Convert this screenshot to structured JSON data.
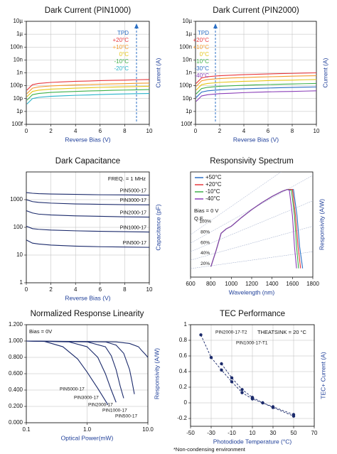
{
  "chart_data": [
    {
      "type": "line",
      "title": "Dark Current (PIN1000)",
      "xlabel": "Reverse Bias (V)",
      "ylabel": "Current (A)",
      "ylog": true,
      "grid": true,
      "xlim": [
        0,
        10
      ],
      "xticks": [
        0,
        2,
        4,
        6,
        8,
        10
      ],
      "ylim": [
        1e-13,
        1e-05
      ],
      "yticks": [
        {
          "value": 1e-05,
          "label": "10µ"
        },
        {
          "value": 1e-06,
          "label": "1µ"
        },
        {
          "value": 1e-07,
          "label": "100n"
        },
        {
          "value": 1e-08,
          "label": "10n"
        },
        {
          "value": 1e-09,
          "label": "1n"
        },
        {
          "value": 1e-10,
          "label": "100p"
        },
        {
          "value": 1e-11,
          "label": "10p"
        },
        {
          "value": 1e-12,
          "label": "1p"
        },
        {
          "value": 1e-13,
          "label": "100f"
        }
      ],
      "legend_title": "TPD",
      "x": [
        0.05,
        0.5,
        1,
        2,
        3,
        4,
        5,
        6,
        7,
        8,
        9,
        10
      ],
      "series": [
        {
          "name": "+20°C",
          "color": "#e8383d",
          "values": [
            4.5e-11,
            1.2e-10,
            1.5e-10,
            1.8e-10,
            2e-10,
            2.2e-10,
            2.3e-10,
            2.5e-10,
            2.6e-10,
            2.7e-10,
            2.9e-10,
            3e-10
          ]
        },
        {
          "name": "+10°C",
          "color": "#f39a2b",
          "values": [
            2.4e-11,
            6.4e-11,
            8e-11,
            9.6e-11,
            1.06e-10,
            1.15e-10,
            1.23e-10,
            1.31e-10,
            1.39e-10,
            1.46e-10,
            1.54e-10,
            1.6e-10
          ]
        },
        {
          "name": "0°C",
          "color": "#e6c619",
          "values": [
            1.4e-11,
            3.6e-11,
            4.5e-11,
            5.4e-11,
            5.9e-11,
            6.5e-11,
            6.9e-11,
            7.4e-11,
            7.8e-11,
            8.2e-11,
            8.6e-11,
            9e-11
          ]
        },
        {
          "name": "-10°C",
          "color": "#3db04a",
          "values": [
            7.5e-12,
            2e-11,
            2.5e-11,
            3e-11,
            3.3e-11,
            3.6e-11,
            3.9e-11,
            4.1e-11,
            4.4e-11,
            4.6e-11,
            4.8e-11,
            5e-11
          ]
        },
        {
          "name": "-20°C",
          "color": "#27b3c9",
          "values": [
            3.8e-12,
            1e-11,
            1.25e-11,
            1.5e-11,
            1.65e-11,
            1.8e-11,
            1.9e-11,
            2.05e-11,
            2.2e-11,
            2.3e-11,
            2.4e-11,
            2.5e-11
          ]
        }
      ]
    },
    {
      "type": "line",
      "title": "Dark Current (PIN2000)",
      "xlabel": "Reverse Bias (V)",
      "ylabel": "Current (A)",
      "ylog": true,
      "grid": true,
      "xlim": [
        0,
        10
      ],
      "xticks": [
        0,
        2,
        4,
        6,
        8,
        10
      ],
      "ylim": [
        1e-13,
        1e-05
      ],
      "yticks": [
        {
          "value": 1e-05,
          "label": "10µ"
        },
        {
          "value": 1e-06,
          "label": "1µ"
        },
        {
          "value": 1e-07,
          "label": "100n"
        },
        {
          "value": 1e-08,
          "label": "10n"
        },
        {
          "value": 1e-09,
          "label": "1n"
        },
        {
          "value": 1e-10,
          "label": "100p"
        },
        {
          "value": 1e-11,
          "label": "10p"
        },
        {
          "value": 1e-12,
          "label": "1p"
        },
        {
          "value": 1e-13,
          "label": "100f"
        }
      ],
      "legend_title": "TPD",
      "x": [
        0.05,
        0.5,
        1,
        2,
        3,
        4,
        5,
        6,
        7,
        8,
        9,
        10
      ],
      "series": [
        {
          "name": "+20°C",
          "color": "#e8383d",
          "values": [
            1.5e-10,
            4e-10,
            5e-10,
            6e-10,
            6.6e-10,
            7.2e-10,
            7.7e-10,
            8.2e-10,
            8.7e-10,
            9.1e-10,
            9.6e-10,
            1e-09
          ]
        },
        {
          "name": "+10°C",
          "color": "#f39a2b",
          "values": [
            9e-11,
            2.4e-10,
            3e-10,
            3.6e-10,
            4e-10,
            4.3e-10,
            4.6e-10,
            4.9e-10,
            5.2e-10,
            5.5e-10,
            5.8e-10,
            6e-10
          ]
        },
        {
          "name": "0°C",
          "color": "#e6c619",
          "values": [
            4.5e-11,
            1.2e-10,
            1.5e-10,
            1.8e-10,
            2e-10,
            2.2e-10,
            2.3e-10,
            2.5e-10,
            2.6e-10,
            2.7e-10,
            2.9e-10,
            3e-10
          ]
        },
        {
          "name": "-10°C",
          "color": "#3db04a",
          "values": [
            2.3e-11,
            6e-11,
            7.5e-11,
            9e-11,
            9.9e-11,
            1.08e-10,
            1.16e-10,
            1.23e-10,
            1.3e-10,
            1.37e-10,
            1.44e-10,
            1.5e-10
          ]
        },
        {
          "name": "-30°C",
          "color": "#2b6fc4",
          "values": [
            1.2e-11,
            3.2e-11,
            4e-11,
            4.8e-11,
            5.3e-11,
            5.8e-11,
            6.2e-11,
            6.6e-11,
            7e-11,
            7.3e-11,
            7.7e-11,
            8e-11
          ]
        },
        {
          "name": "-40°C",
          "color": "#8a3fb8",
          "values": [
            6e-12,
            1.6e-11,
            2e-11,
            2.4e-11,
            2.6e-11,
            2.9e-11,
            3.1e-11,
            3.3e-11,
            3.5e-11,
            3.6e-11,
            3.8e-11,
            4e-11
          ]
        }
      ]
    },
    {
      "type": "line",
      "title": "Dark Capacitance",
      "xlabel": "Reverse Bias (V)",
      "ylabel": "Capacitance (pF)",
      "ylog": true,
      "grid": true,
      "xlim": [
        0,
        10
      ],
      "xticks": [
        0,
        2,
        4,
        6,
        8,
        10
      ],
      "ylim": [
        1,
        10000
      ],
      "yticks": [
        1,
        10,
        100,
        1000
      ],
      "annotations": [
        "FREQ. = 1 MHz"
      ],
      "x": [
        0,
        0.5,
        1,
        2,
        4,
        6,
        8,
        10
      ],
      "series": [
        {
          "name": "PIN5000-17",
          "color": "#1b2a6b",
          "values": [
            1800,
            1700,
            1650,
            1600,
            1550,
            1500,
            1480,
            1450
          ]
        },
        {
          "name": "PIN3000-17",
          "color": "#1b2a6b",
          "values": [
            1000,
            850,
            800,
            750,
            700,
            680,
            660,
            650
          ]
        },
        {
          "name": "PIN2000-17",
          "color": "#1b2a6b",
          "values": [
            400,
            330,
            300,
            280,
            260,
            250,
            240,
            235
          ]
        },
        {
          "name": "PIN1000-17",
          "color": "#1b2a6b",
          "values": [
            110,
            90,
            85,
            80,
            75,
            72,
            70,
            68
          ]
        },
        {
          "name": "PIN500-17",
          "color": "#1b2a6b",
          "values": [
            35,
            27,
            25,
            23,
            21,
            20,
            19.5,
            19
          ]
        }
      ]
    },
    {
      "type": "line",
      "title": "Responsivity Spectrum",
      "xlabel": "Wavelength (nm)",
      "ylabel": "Responsivity (A/W)",
      "grid": false,
      "xlim": [
        600,
        1800
      ],
      "xticks": [
        600,
        800,
        1000,
        1200,
        1400,
        1600,
        1800
      ],
      "ylim": [
        0,
        1.2
      ],
      "annotations": [
        "Bias = 0 V",
        "Q.E."
      ],
      "qe_lines": [
        {
          "value": 20,
          "label": "20%"
        },
        {
          "value": 40,
          "label": "40%"
        },
        {
          "value": 60,
          "label": "60%"
        },
        {
          "value": 80,
          "label": "80%"
        },
        {
          "value": 100,
          "label": "100%"
        }
      ],
      "series": [
        {
          "name": "+50°C",
          "color": "#2b6fc4",
          "x": [
            800,
            850,
            900,
            950,
            1000,
            1050,
            1100,
            1200,
            1300,
            1400,
            1500,
            1550,
            1610,
            1645,
            1670,
            1700
          ],
          "values": [
            0.12,
            0.3,
            0.5,
            0.55,
            0.58,
            0.63,
            0.68,
            0.77,
            0.85,
            0.92,
            0.98,
            1.0,
            1.0,
            0.7,
            0.35,
            0.1
          ]
        },
        {
          "name": "+20°C",
          "color": "#e8383d",
          "x": [
            800,
            850,
            900,
            950,
            1000,
            1050,
            1100,
            1200,
            1300,
            1400,
            1500,
            1550,
            1600,
            1630,
            1655,
            1680
          ],
          "values": [
            0.12,
            0.3,
            0.5,
            0.55,
            0.58,
            0.63,
            0.68,
            0.77,
            0.85,
            0.92,
            0.98,
            1.0,
            1.0,
            0.7,
            0.35,
            0.1
          ]
        },
        {
          "name": "-10°C",
          "color": "#3db04a",
          "x": [
            800,
            850,
            900,
            950,
            1000,
            1050,
            1100,
            1200,
            1300,
            1400,
            1500,
            1550,
            1590,
            1620,
            1640,
            1660
          ],
          "values": [
            0.12,
            0.3,
            0.5,
            0.55,
            0.58,
            0.63,
            0.68,
            0.77,
            0.85,
            0.92,
            0.98,
            1.0,
            0.99,
            0.7,
            0.35,
            0.1
          ]
        },
        {
          "name": "-40°C",
          "color": "#8a3fb8",
          "x": [
            800,
            850,
            900,
            950,
            1000,
            1050,
            1100,
            1200,
            1300,
            1400,
            1500,
            1550,
            1570,
            1600,
            1620,
            1640
          ],
          "values": [
            0.12,
            0.3,
            0.5,
            0.55,
            0.58,
            0.63,
            0.68,
            0.77,
            0.85,
            0.92,
            0.98,
            1.0,
            0.99,
            0.7,
            0.35,
            0.1
          ]
        }
      ]
    },
    {
      "type": "line",
      "title": "Normalized Response Linearity",
      "xlabel": "Optical Power(mW)",
      "ylabel": "Responsivity (A/W)",
      "xlog": true,
      "grid": true,
      "xlim": [
        0.1,
        10
      ],
      "xticks": [
        0.1,
        {
          "value": 1,
          "label": "1.0"
        },
        {
          "value": 10,
          "label": "10.0"
        }
      ],
      "ylim": [
        0,
        1.2
      ],
      "yticks": [
        {
          "value": 0,
          "label": "0.000"
        },
        {
          "value": 0.2,
          "label": "0.200"
        },
        {
          "value": 0.4,
          "label": "0.400"
        },
        {
          "value": 0.6,
          "label": "0.600"
        },
        {
          "value": 0.8,
          "label": "0.800"
        },
        {
          "value": 1,
          "label": "1.000"
        },
        {
          "value": 1.2,
          "label": "1.200"
        }
      ],
      "annotations": [
        "Bias = 0V"
      ],
      "series": [
        {
          "name": "PIN5000-17",
          "color": "#1b2a6b",
          "x": [
            0.1,
            0.2,
            0.4,
            0.7,
            1,
            1.5,
            2.2
          ],
          "values": [
            1,
            0.995,
            0.93,
            0.78,
            0.62,
            0.42,
            0.22
          ]
        },
        {
          "name": "PIN3000-17",
          "color": "#1b2a6b",
          "x": [
            0.1,
            0.5,
            1,
            1.5,
            2,
            2.5,
            3
          ],
          "values": [
            1,
            0.99,
            0.93,
            0.8,
            0.6,
            0.4,
            0.25
          ]
        },
        {
          "name": "PIN2000-17",
          "color": "#1b2a6b",
          "x": [
            0.1,
            1,
            2,
            2.5,
            3,
            3.5,
            4
          ],
          "values": [
            1,
            0.99,
            0.93,
            0.82,
            0.65,
            0.45,
            0.3
          ]
        },
        {
          "name": "PIN1000-17",
          "color": "#1b2a6b",
          "x": [
            0.1,
            2,
            3,
            4,
            5,
            5.5,
            6
          ],
          "values": [
            1,
            0.99,
            0.95,
            0.85,
            0.65,
            0.5,
            0.35
          ]
        },
        {
          "name": "PIN500-17",
          "color": "#1b2a6b",
          "x": [
            0.1,
            3,
            5,
            7,
            8,
            9,
            10
          ],
          "values": [
            1,
            0.99,
            0.97,
            0.93,
            0.88,
            0.84,
            0.8
          ]
        }
      ]
    },
    {
      "type": "scatter",
      "title": "TEC Performance",
      "xlabel": "Photodiode Temperature (°C)",
      "ylabel": "TEC+ Current (A)",
      "grid": true,
      "dashed": true,
      "xlim": [
        -50,
        70
      ],
      "xticks": [
        -50,
        -30,
        -10,
        10,
        30,
        50,
        70
      ],
      "ylim": [
        -0.3,
        1.0
      ],
      "yticks": [
        -0.2,
        0,
        0.2,
        0.4,
        0.6,
        0.8,
        1
      ],
      "annotations": [
        "THEATSINK = 20 °C",
        "*Non-condensing environment"
      ],
      "series": [
        {
          "name": "PIN2000-17-T2",
          "color": "#1b2a6b",
          "x": [
            -40,
            -30,
            -20,
            -10,
            0,
            10,
            20,
            30,
            50
          ],
          "values": [
            0.87,
            0.58,
            0.42,
            0.27,
            0.13,
            0.05,
            0,
            -0.06,
            -0.17
          ]
        },
        {
          "name": "PIN1000-17-T1",
          "color": "#1b2a6b",
          "x": [
            -20,
            -10,
            0,
            10,
            20,
            30,
            50
          ],
          "values": [
            0.5,
            0.32,
            0.17,
            0.07,
            0,
            -0.05,
            -0.15
          ]
        }
      ]
    }
  ]
}
